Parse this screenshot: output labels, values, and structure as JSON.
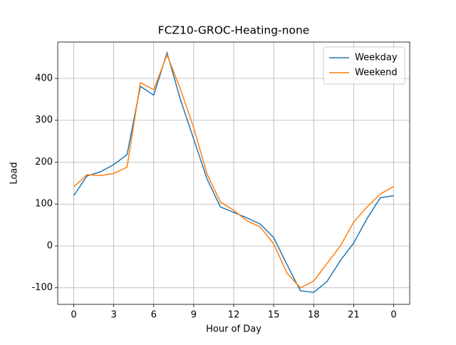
{
  "chart_data": {
    "type": "line",
    "title": "FCZ10-GROC-Heating-none",
    "xlabel": "Hour of Day",
    "ylabel": "Load",
    "x": [
      0,
      1,
      2,
      3,
      4,
      5,
      6,
      7,
      8,
      9,
      10,
      11,
      12,
      13,
      14,
      15,
      16,
      17,
      18,
      19,
      20,
      21,
      22,
      23,
      24
    ],
    "series": [
      {
        "name": "Weekday",
        "color": "#1f77b4",
        "values": [
          120,
          167,
          177,
          194,
          218,
          381,
          360,
          461,
          350,
          255,
          160,
          93,
          80,
          67,
          52,
          20,
          -45,
          -107,
          -111,
          -85,
          -35,
          7,
          65,
          115,
          120
        ]
      },
      {
        "name": "Weekend",
        "color": "#ff7f0e",
        "values": [
          141,
          170,
          168,
          173,
          188,
          390,
          373,
          456,
          375,
          282,
          172,
          105,
          85,
          60,
          45,
          5,
          -65,
          -100,
          -84,
          -42,
          0,
          57,
          93,
          124,
          142
        ]
      }
    ],
    "xlim": [
      -1.2,
      25.2
    ],
    "ylim": [
      -139.6,
      486.8
    ],
    "xticks": [
      0,
      3,
      6,
      9,
      12,
      15,
      18,
      21,
      {
        "value": 24,
        "label": "0"
      }
    ],
    "yticks": [
      -100,
      0,
      100,
      200,
      300,
      400
    ],
    "grid": true,
    "legend": "upper right"
  }
}
